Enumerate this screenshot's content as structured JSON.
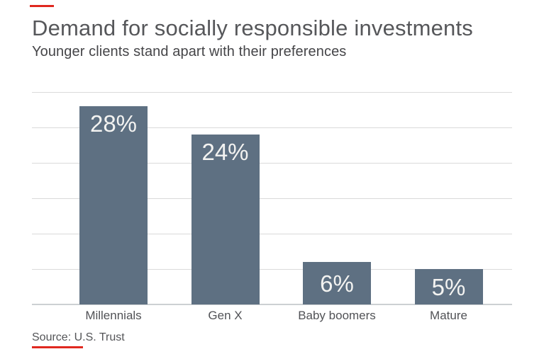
{
  "header": {
    "title": "Demand for socially responsible investments",
    "subtitle": "Younger clients stand apart with their preferences"
  },
  "footer": {
    "source": "Source: U.S. Trust"
  },
  "branding": {
    "accent_color": "#e0281f"
  },
  "chart_data": {
    "type": "bar",
    "title": "Demand for socially responsible investments",
    "subtitle": "Younger clients stand apart with their preferences",
    "source": "Source: U.S. Trust",
    "categories": [
      "Millennials",
      "Gen X",
      "Baby boomers",
      "Mature"
    ],
    "values": [
      28,
      24,
      6,
      5
    ],
    "value_labels": [
      "28%",
      "24%",
      "6%",
      "5%"
    ],
    "unit": "%",
    "xlabel": "",
    "ylabel": "",
    "ylim": [
      0,
      30
    ],
    "gridline_interval": 5,
    "grid": true,
    "legend": false,
    "bar_color": "#5e7082",
    "value_label_color": "#f3f3f1",
    "axis_text_color": "#515256",
    "gridline_color": "#dadada",
    "baseline_color": "#ccd0d3"
  }
}
